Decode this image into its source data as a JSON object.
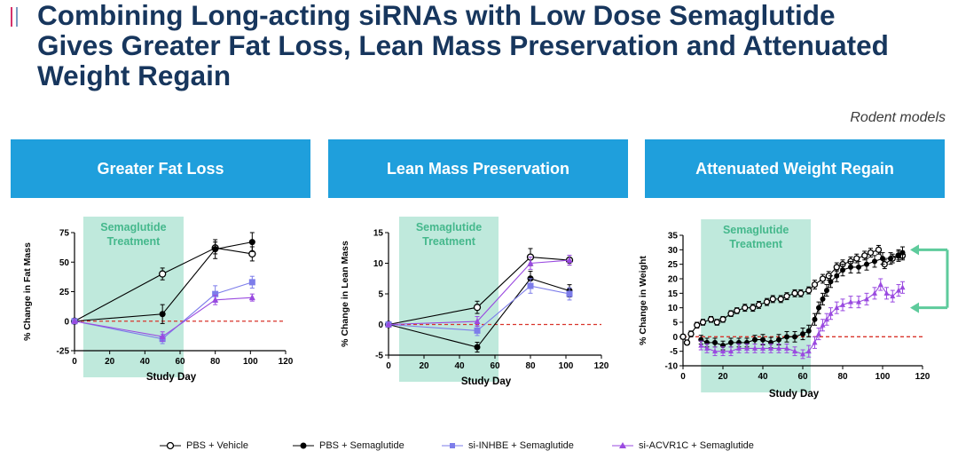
{
  "header": {
    "title_lines": [
      "Combining Long-acting siRNAs with Low Dose Semaglutide",
      "Gives Greater Fat Loss, Lean Mass Preservation and Attenuated",
      "Weight Regain"
    ],
    "subtitle": "Rodent models"
  },
  "banners": [
    "Greater Fat Loss",
    "Lean Mass Preservation",
    "Attenuated Weight Regain"
  ],
  "colors": {
    "banner": "#1f9fdc",
    "title": "#17365d",
    "treatment_band": "#bfe9dc",
    "treatment_text": "#45b88c",
    "zero_line": "#d9342b",
    "arrow": "#5ecb9c",
    "pbs_vehicle": "#000000",
    "pbs_sema": "#000000",
    "inhbe": "#7d7dea",
    "acvr1c": "#9a4ae0"
  },
  "treatment_label": [
    "Semaglutide",
    "Treatment"
  ],
  "legend": [
    {
      "label": "PBS + Vehicle",
      "marker": "open-circle"
    },
    {
      "label": "PBS + Semaglutide",
      "marker": "filled-circle"
    },
    {
      "label": "si-INHBE + Semaglutide",
      "marker": "square"
    },
    {
      "label": "si-ACVR1C + Semaglutide",
      "marker": "triangle"
    }
  ],
  "chart_data": [
    {
      "type": "line",
      "title": "Greater Fat Loss",
      "xlabel": "Study Day",
      "ylabel": "% Change in Fat Mass",
      "xlim": [
        0,
        120
      ],
      "ylim": [
        -25,
        75
      ],
      "xticks": [
        0,
        20,
        40,
        60,
        80,
        100,
        120
      ],
      "yticks": [
        -25,
        0,
        25,
        50,
        75
      ],
      "treatment_window": [
        5,
        62
      ],
      "series": [
        {
          "name": "PBS + Vehicle",
          "x": [
            0,
            50,
            80,
            101
          ],
          "y": [
            0,
            40,
            62,
            57
          ],
          "err": [
            0,
            5,
            5,
            6
          ]
        },
        {
          "name": "PBS + Semaglutide",
          "x": [
            0,
            50,
            80,
            101
          ],
          "y": [
            0,
            6,
            61,
            67
          ],
          "err": [
            0,
            8,
            8,
            8
          ]
        },
        {
          "name": "si-INHBE + Semaglutide",
          "x": [
            0,
            50,
            80,
            101
          ],
          "y": [
            0,
            -15,
            23,
            33
          ],
          "err": [
            0,
            4,
            7,
            5
          ]
        },
        {
          "name": "si-ACVR1C + Semaglutide",
          "x": [
            0,
            50,
            80,
            101
          ],
          "y": [
            0,
            -13,
            18,
            20
          ],
          "err": [
            0,
            4,
            4,
            3
          ]
        }
      ]
    },
    {
      "type": "line",
      "title": "Lean Mass Preservation",
      "xlabel": "Study Day",
      "ylabel": "% Change in Lean Mass",
      "xlim": [
        0,
        120
      ],
      "ylim": [
        -5,
        15
      ],
      "xticks": [
        0,
        20,
        40,
        60,
        80,
        100,
        120
      ],
      "yticks": [
        -5,
        0,
        5,
        10,
        15
      ],
      "treatment_window": [
        6,
        62
      ],
      "series": [
        {
          "name": "PBS + Vehicle",
          "x": [
            0,
            50,
            80,
            102
          ],
          "y": [
            0,
            2.8,
            11,
            10.5
          ],
          "err": [
            0,
            1,
            1.4,
            0.8
          ]
        },
        {
          "name": "PBS + Semaglutide",
          "x": [
            0,
            50,
            80,
            102
          ],
          "y": [
            0,
            -3.7,
            7.5,
            5.5
          ],
          "err": [
            0,
            0.8,
            1.2,
            1
          ]
        },
        {
          "name": "si-INHBE + Semaglutide",
          "x": [
            0,
            50,
            80,
            102
          ],
          "y": [
            0,
            -1,
            6.3,
            5
          ],
          "err": [
            0,
            0.8,
            1.2,
            1
          ]
        },
        {
          "name": "si-ACVR1C + Semaglutide",
          "x": [
            0,
            50,
            80,
            102
          ],
          "y": [
            0,
            0.5,
            10,
            10.5
          ],
          "err": [
            0,
            0.8,
            1,
            0.8
          ]
        }
      ]
    },
    {
      "type": "line",
      "title": "Attenuated Weight Regain",
      "xlabel": "Study Day",
      "ylabel": "% Change in Weight",
      "xlim": [
        0,
        120
      ],
      "ylim": [
        -10,
        35
      ],
      "xticks": [
        0,
        20,
        40,
        60,
        80,
        100,
        120
      ],
      "yticks": [
        -10,
        -5,
        0,
        5,
        10,
        15,
        20,
        25,
        30,
        35
      ],
      "treatment_window": [
        9,
        64
      ],
      "series": [
        {
          "name": "PBS + Vehicle",
          "x": [
            0,
            2,
            4,
            7,
            10,
            14,
            17,
            20,
            24,
            27,
            31,
            35,
            38,
            42,
            45,
            49,
            52,
            56,
            59,
            63,
            66,
            70,
            73,
            77,
            80,
            84,
            87,
            91,
            94,
            98,
            101,
            105,
            108,
            110
          ],
          "y": [
            0,
            -2,
            1,
            4,
            5,
            6,
            5,
            6,
            8,
            9,
            10,
            10,
            11,
            12,
            13,
            13,
            14,
            15,
            15,
            16,
            18,
            20,
            21,
            24,
            25,
            26,
            27,
            28,
            29,
            30,
            25,
            27,
            28,
            28
          ],
          "err": [
            0.8,
            0.8,
            1,
            1,
            1,
            1,
            1,
            1,
            1,
            1,
            1.2,
            1.2,
            1.2,
            1.2,
            1.2,
            1.2,
            1.2,
            1.2,
            1.2,
            1.2,
            1.5,
            1.5,
            1.5,
            1.5,
            1.5,
            1.5,
            1.5,
            1.5,
            1.5,
            1.5,
            1.5,
            1.5,
            1.5,
            1.5
          ]
        },
        {
          "name": "PBS + Semaglutide",
          "x": [
            9,
            12,
            16,
            20,
            24,
            28,
            32,
            36,
            40,
            44,
            48,
            52,
            56,
            60,
            63,
            66,
            68,
            70,
            72,
            74,
            77,
            80,
            84,
            88,
            92,
            96,
            100,
            104,
            108,
            110
          ],
          "y": [
            -1,
            -2,
            -2,
            -3,
            -2,
            -2,
            -2,
            -1,
            -1,
            -2,
            -1,
            0,
            0,
            1,
            2,
            6,
            10,
            13,
            16,
            19,
            21,
            23,
            24,
            24,
            25,
            26,
            27,
            27,
            28,
            29
          ],
          "err": [
            1.5,
            1.5,
            1.5,
            1.5,
            1.5,
            1.5,
            1.5,
            1.5,
            1.8,
            1.8,
            1.8,
            1.8,
            1.8,
            2,
            2,
            2,
            2,
            2,
            2,
            2,
            2,
            2,
            2,
            2,
            2,
            2,
            2,
            2,
            2,
            2
          ]
        },
        {
          "name": "si-INHBE + Semaglutide",
          "x": [],
          "y": [],
          "err": []
        },
        {
          "name": "si-ACVR1C + Semaglutide",
          "x": [
            9,
            12,
            16,
            20,
            24,
            28,
            32,
            36,
            40,
            44,
            48,
            52,
            56,
            60,
            63,
            66,
            68,
            70,
            72,
            74,
            77,
            80,
            84,
            88,
            92,
            96,
            99,
            102,
            105,
            108,
            110
          ],
          "y": [
            -3,
            -4,
            -5,
            -5,
            -5,
            -4,
            -4,
            -4,
            -4,
            -4,
            -4,
            -4,
            -5,
            -6,
            -5,
            -2,
            1,
            4,
            6,
            8,
            10,
            11,
            12,
            12,
            13,
            15,
            18,
            15,
            14,
            16,
            17
          ],
          "err": [
            1.5,
            1.5,
            1.5,
            1.5,
            1.5,
            1.5,
            1.5,
            1.5,
            1.5,
            1.5,
            1.5,
            1.5,
            1.5,
            1.5,
            2,
            2,
            2,
            2,
            2,
            2,
            2,
            2,
            2,
            2,
            2,
            2,
            2,
            2,
            2,
            2,
            2
          ]
        }
      ]
    }
  ]
}
